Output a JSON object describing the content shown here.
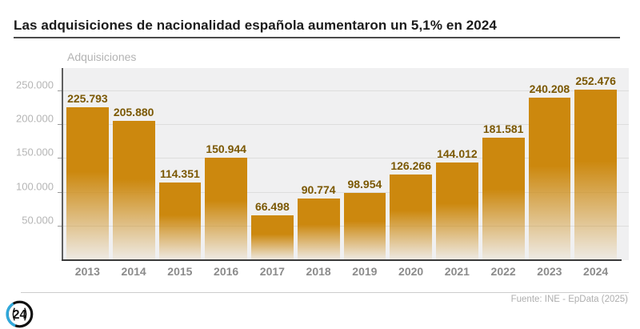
{
  "header": {
    "title": "Las adquisiciones de nacionalidad española aumentaron un 5,1% en 2024"
  },
  "chart_data": {
    "type": "bar",
    "title": "Las adquisiciones de nacionalidad española aumentaron un 5,1% en 2024",
    "ylabel": "Adquisiciones",
    "xlabel": "",
    "categories": [
      "2013",
      "2014",
      "2015",
      "2016",
      "2017",
      "2018",
      "2019",
      "2020",
      "2021",
      "2022",
      "2023",
      "2024"
    ],
    "values": [
      225793,
      205880,
      114351,
      150944,
      66498,
      90774,
      98954,
      126266,
      144012,
      181581,
      240208,
      252476
    ],
    "value_labels": [
      "225.793",
      "205.880",
      "114.351",
      "150.944",
      "66.498",
      "90.774",
      "98.954",
      "126.266",
      "144.012",
      "181.581",
      "240.208",
      "252.476"
    ],
    "ylim": [
      0,
      284000
    ],
    "yticks": [
      {
        "value": 50000,
        "label": "50.000"
      },
      {
        "value": 100000,
        "label": "100.000"
      },
      {
        "value": 150000,
        "label": "150.000"
      },
      {
        "value": 200000,
        "label": "200.000"
      },
      {
        "value": 250000,
        "label": "250.000"
      }
    ],
    "grid": true,
    "legend": false,
    "bar_color": "#cc880e",
    "bar_fade_color": "rgba(204,136,14,0.05)",
    "value_label_color": "#7b5803",
    "plot_background": "#f0f0f1"
  },
  "footer": {
    "source": "Fuente: INE - EpData (2025)",
    "logo_text": "24",
    "logo_blue": "#2fa8db"
  }
}
